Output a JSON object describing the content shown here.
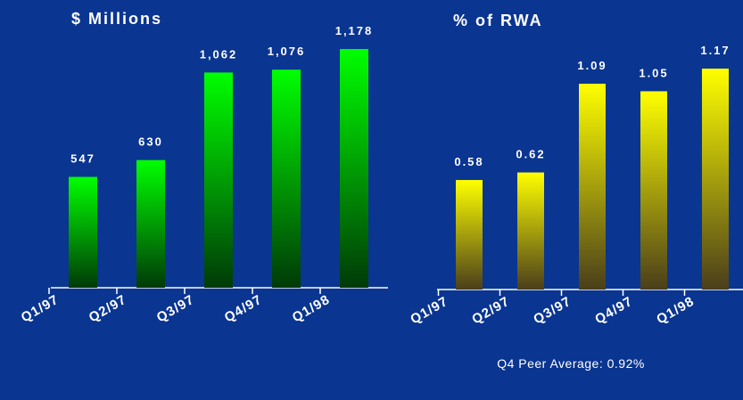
{
  "chart_data": [
    {
      "type": "bar",
      "title": "$ Millions",
      "categories": [
        "Q1/97",
        "Q2/97",
        "Q3/97",
        "Q4/97",
        "Q1/98"
      ],
      "values": [
        547,
        630,
        1062,
        1076,
        1178
      ],
      "value_labels": [
        "547",
        "630",
        "1,062",
        "1,076",
        "1,178"
      ],
      "color": "#00ff00"
    },
    {
      "type": "bar",
      "title": "% of RWA",
      "categories": [
        "Q1/97",
        "Q2/97",
        "Q3/97",
        "Q4/97",
        "Q1/98"
      ],
      "values": [
        0.58,
        0.62,
        1.09,
        1.05,
        1.17
      ],
      "value_labels": [
        "0.58",
        "0.62",
        "1.09",
        "1.05",
        "1.17"
      ],
      "color": "#ffff00",
      "annotation": "Q4 Peer Average: 0.92%"
    }
  ]
}
